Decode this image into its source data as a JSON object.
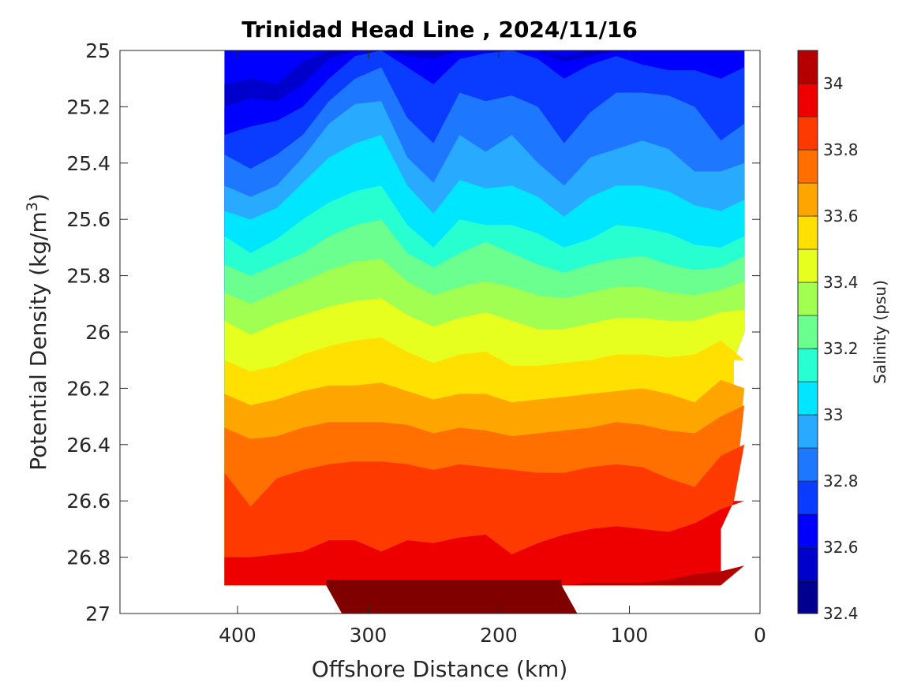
{
  "chart_data": {
    "type": "heatmap",
    "subtype": "filled-contour",
    "title": "Trinidad Head Line , 2024/11/16",
    "xlabel": "Offshore Distance (km)",
    "ylabel_main": "Potential Density (kg/m",
    "ylabel_sup": "3",
    "ylabel_end": ")",
    "colorbar_label": "Salinity (psu)",
    "x_axis": {
      "range": [
        490,
        0
      ],
      "reversed": true,
      "ticks": [
        400,
        300,
        200,
        100,
        0
      ],
      "tick_labels": [
        "400",
        "300",
        "200",
        "100",
        "0"
      ]
    },
    "y_axis": {
      "range": [
        25,
        27
      ],
      "reversed": true,
      "ticks": [
        25,
        25.2,
        25.4,
        25.6,
        25.8,
        26,
        26.2,
        26.4,
        26.6,
        26.8,
        27
      ],
      "tick_labels": [
        "25",
        "25.2",
        "25.4",
        "25.6",
        "25.8",
        "26",
        "26.2",
        "26.4",
        "26.6",
        "26.8",
        "27"
      ]
    },
    "colorbar": {
      "range": [
        32.4,
        34.1
      ],
      "levels": [
        32.4,
        32.5,
        32.6,
        32.7,
        32.8,
        32.9,
        33.0,
        33.1,
        33.2,
        33.3,
        33.4,
        33.5,
        33.6,
        33.7,
        33.8,
        33.9,
        34.0,
        34.1
      ],
      "colors": [
        "#00008f",
        "#0000cc",
        "#0000ff",
        "#0a3cff",
        "#1e78ff",
        "#28aaff",
        "#00e6ff",
        "#28ffd0",
        "#6aff8e",
        "#a0ff50",
        "#e6ff1e",
        "#ffe000",
        "#ffa500",
        "#ff7000",
        "#ff3a00",
        "#ee0000",
        "#b50000"
      ],
      "ticks": [
        32.4,
        32.6,
        32.8,
        33.0,
        33.2,
        33.4,
        33.6,
        33.8,
        34.0
      ],
      "tick_labels": [
        "32.4",
        "32.6",
        "32.8",
        "33",
        "33.2",
        "33.4",
        "33.6",
        "33.8",
        "34"
      ]
    },
    "data_extent": {
      "x_max": 410,
      "x_min_top": 12,
      "y_top": 25,
      "y_bottom_shallow": 26.9,
      "y_bottom_deep": 27,
      "deep_x_range": [
        140,
        320
      ],
      "right_boundary": [
        [
          12,
          25.0
        ],
        [
          12,
          26.0
        ],
        [
          20,
          26.1
        ],
        [
          20,
          26.6
        ],
        [
          30,
          26.7
        ],
        [
          30,
          26.9
        ]
      ]
    },
    "x_stations": [
      410,
      390,
      370,
      350,
      330,
      310,
      290,
      270,
      250,
      230,
      210,
      190,
      170,
      150,
      130,
      110,
      90,
      70,
      50,
      30,
      12
    ],
    "contour_levels": [
      {
        "level": 32.6,
        "y": [
          25.12,
          25.1,
          25.12,
          25.04,
          25.0,
          25.0,
          25.0,
          25.0,
          25.0,
          25.0,
          25.0,
          25.0,
          25.0,
          25.02,
          25.0,
          25.0,
          25.0,
          25.0,
          25.0,
          25.0,
          25.0
        ]
      },
      {
        "level": 32.7,
        "y": [
          25.2,
          25.17,
          25.18,
          25.12,
          25.03,
          25.0,
          25.0,
          25.02,
          25.03,
          25.0,
          25.0,
          25.0,
          25.0,
          25.04,
          25.02,
          25.0,
          25.0,
          25.0,
          25.0,
          25.0,
          25.0
        ]
      },
      {
        "level": 32.8,
        "y": [
          25.3,
          25.27,
          25.25,
          25.2,
          25.1,
          25.02,
          25.0,
          25.06,
          25.12,
          25.03,
          25.01,
          25.0,
          25.03,
          25.1,
          25.05,
          25.02,
          25.05,
          25.07,
          25.07,
          25.1,
          25.06
        ]
      },
      {
        "level": 32.9,
        "y": [
          25.37,
          25.42,
          25.37,
          25.3,
          25.18,
          25.1,
          25.06,
          25.24,
          25.33,
          25.15,
          25.18,
          25.16,
          25.2,
          25.33,
          25.22,
          25.15,
          25.15,
          25.16,
          25.2,
          25.32,
          25.26
        ]
      },
      {
        "level": 33.0,
        "y": [
          25.48,
          25.52,
          25.48,
          25.38,
          25.26,
          25.19,
          25.18,
          25.38,
          25.47,
          25.3,
          25.36,
          25.3,
          25.4,
          25.48,
          25.38,
          25.35,
          25.32,
          25.35,
          25.43,
          25.43,
          25.4
        ]
      },
      {
        "level": 33.1,
        "y": [
          25.57,
          25.6,
          25.56,
          25.47,
          25.38,
          25.33,
          25.3,
          25.48,
          25.58,
          25.46,
          25.49,
          25.48,
          25.52,
          25.59,
          25.52,
          25.48,
          25.48,
          25.5,
          25.55,
          25.57,
          25.53
        ]
      },
      {
        "level": 33.2,
        "y": [
          25.66,
          25.72,
          25.67,
          25.6,
          25.54,
          25.5,
          25.48,
          25.62,
          25.7,
          25.6,
          25.62,
          25.62,
          25.65,
          25.7,
          25.67,
          25.62,
          25.63,
          25.65,
          25.69,
          25.7,
          25.66
        ]
      },
      {
        "level": 33.3,
        "y": [
          25.76,
          25.8,
          25.76,
          25.72,
          25.66,
          25.62,
          25.6,
          25.72,
          25.77,
          25.72,
          25.68,
          25.72,
          25.76,
          25.79,
          25.76,
          25.74,
          25.73,
          25.76,
          25.78,
          25.77,
          25.73
        ]
      },
      {
        "level": 33.4,
        "y": [
          25.86,
          25.9,
          25.86,
          25.82,
          25.78,
          25.75,
          25.74,
          25.82,
          25.87,
          25.84,
          25.82,
          25.84,
          25.87,
          25.88,
          25.86,
          25.84,
          25.84,
          25.86,
          25.87,
          25.85,
          25.82
        ]
      },
      {
        "level": 33.5,
        "y": [
          25.96,
          26.01,
          25.97,
          25.94,
          25.91,
          25.89,
          25.88,
          25.94,
          25.98,
          25.95,
          25.93,
          25.96,
          25.99,
          25.99,
          25.97,
          25.95,
          25.95,
          25.96,
          25.96,
          25.93,
          25.92
        ]
      },
      {
        "level": 33.6,
        "y": [
          26.1,
          26.14,
          26.12,
          26.08,
          26.05,
          26.03,
          26.02,
          26.07,
          26.11,
          26.08,
          26.07,
          26.12,
          26.12,
          26.11,
          26.1,
          26.08,
          26.08,
          26.09,
          26.08,
          26.03,
          26.1
        ]
      },
      {
        "level": 33.7,
        "y": [
          26.22,
          26.26,
          26.24,
          26.21,
          26.19,
          26.19,
          26.18,
          26.21,
          26.24,
          26.22,
          26.22,
          26.25,
          26.24,
          26.23,
          26.22,
          26.21,
          26.2,
          26.22,
          26.25,
          26.17,
          26.2
        ]
      },
      {
        "level": 33.8,
        "y": [
          26.34,
          26.38,
          26.37,
          26.34,
          26.32,
          26.32,
          26.32,
          26.33,
          26.36,
          26.34,
          26.35,
          26.37,
          26.36,
          26.35,
          26.34,
          26.32,
          26.33,
          26.35,
          26.36,
          26.3,
          26.26
        ]
      },
      {
        "level": 33.9,
        "y": [
          26.5,
          26.62,
          26.52,
          26.49,
          26.47,
          26.46,
          26.46,
          26.47,
          26.49,
          26.47,
          26.48,
          26.49,
          26.5,
          26.5,
          26.48,
          26.47,
          26.48,
          26.52,
          26.55,
          26.44,
          26.4
        ]
      },
      {
        "level": 34.0,
        "y": [
          26.8,
          26.8,
          26.79,
          26.78,
          26.74,
          26.74,
          26.78,
          26.74,
          26.75,
          26.73,
          26.72,
          26.79,
          26.75,
          26.72,
          26.7,
          26.69,
          26.7,
          26.71,
          26.68,
          26.63,
          26.6
        ]
      },
      {
        "level": 34.1,
        "y": [
          26.9,
          26.9,
          26.9,
          26.9,
          26.9,
          26.92,
          26.93,
          26.92,
          26.92,
          26.93,
          26.95,
          26.93,
          26.92,
          26.9,
          26.89,
          26.89,
          26.89,
          26.88,
          26.86,
          26.85,
          26.83
        ]
      }
    ]
  }
}
